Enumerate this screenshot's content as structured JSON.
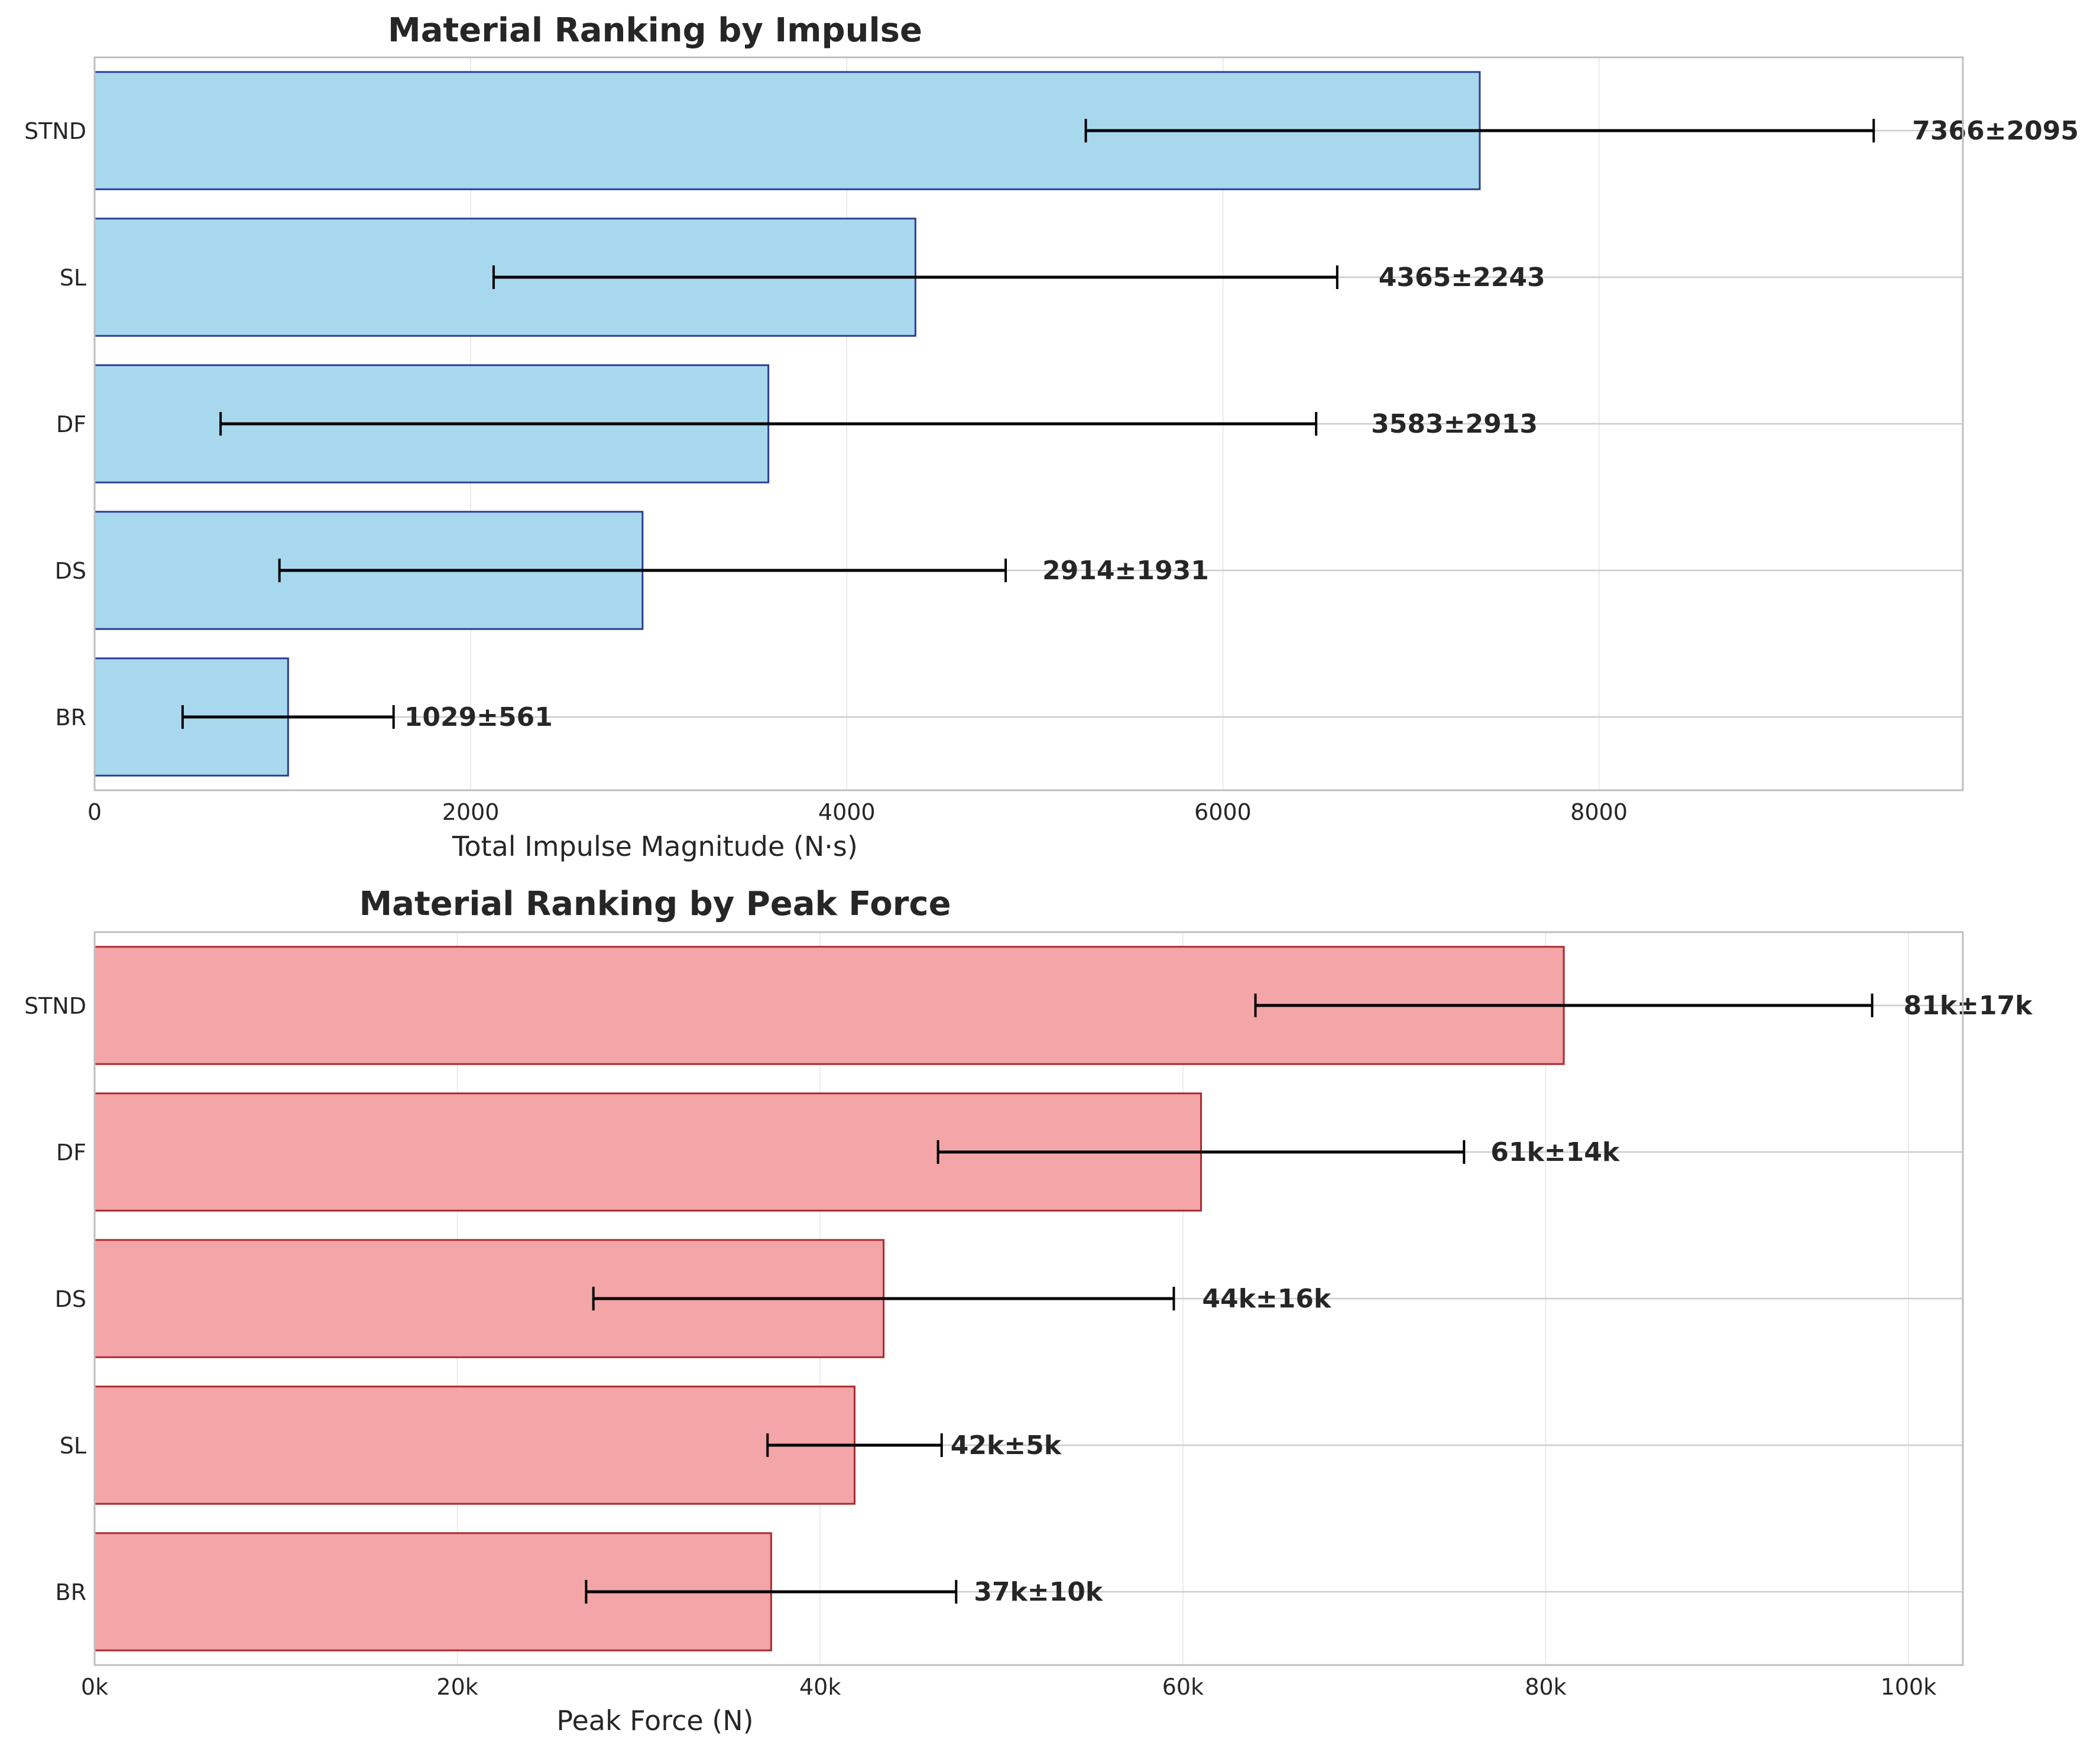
{
  "chart_data": [
    {
      "type": "bar",
      "orientation": "horizontal",
      "title": "Material Ranking by Impulse",
      "xlabel": "Total Impulse Magnitude (N·s)",
      "ylabel": "",
      "categories": [
        "STND",
        "SL",
        "DF",
        "DS",
        "BR"
      ],
      "values": [
        7366,
        4365,
        3583,
        2914,
        1029
      ],
      "errors": [
        2095,
        2243,
        2913,
        1931,
        561
      ],
      "data_labels": [
        "7366±2095",
        "4365±2243",
        "3583±2913",
        "2914±1931",
        "1029±561"
      ],
      "xlim": [
        0,
        9935
      ],
      "xticks": [
        0,
        2000,
        4000,
        6000,
        8000
      ],
      "xtick_labels": [
        "0",
        "2000",
        "4000",
        "6000",
        "8000"
      ],
      "grid": true,
      "colors": {
        "fill": "#a8d8ee",
        "edge": "#2c3e94",
        "error": "#000000"
      }
    },
    {
      "type": "bar",
      "orientation": "horizontal",
      "title": "Material Ranking by Peak Force",
      "xlabel": "Peak Force (N)",
      "ylabel": "",
      "categories": [
        "STND",
        "DF",
        "DS",
        "SL",
        "BR"
      ],
      "values": [
        81000,
        61000,
        43500,
        41900,
        37300
      ],
      "errors": [
        17000,
        14500,
        16000,
        4800,
        10200
      ],
      "data_labels": [
        "81k±17k",
        "61k±14k",
        "44k±16k",
        "42k±5k",
        "37k±10k"
      ],
      "xlim": [
        0,
        103000
      ],
      "xticks": [
        0,
        20000,
        40000,
        60000,
        80000,
        100000
      ],
      "xtick_labels": [
        "0k",
        "20k",
        "40k",
        "60k",
        "80k",
        "100k"
      ],
      "grid": true,
      "colors": {
        "fill": "#f3a5a7",
        "edge": "#a82a30",
        "error": "#000000"
      }
    }
  ]
}
